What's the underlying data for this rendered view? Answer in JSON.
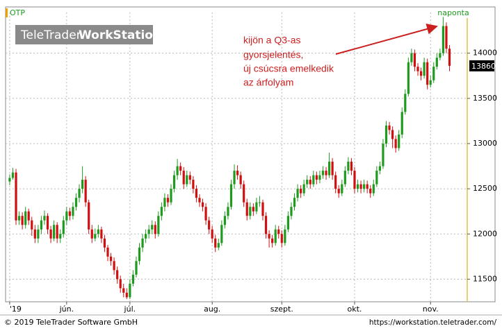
{
  "chart_data": {
    "type": "candlestick",
    "period_label": "naponta",
    "annotation": [
      "kijön a Q3-as",
      "gyorsjelentés,",
      "új csúcsra emelkedik",
      "az árfolyam"
    ],
    "series": [
      {
        "name": "OTP",
        "color": "#f0a000",
        "up_color": "#1f9a1f",
        "down_color": "#d01010",
        "candles": [
          [
            12580,
            12660,
            12540,
            12620
          ],
          [
            12620,
            12730,
            12600,
            12680
          ],
          [
            12680,
            12720,
            12100,
            12150
          ],
          [
            12150,
            12250,
            12100,
            12200
          ],
          [
            12200,
            12240,
            12050,
            12100
          ],
          [
            12100,
            12300,
            12060,
            12250
          ],
          [
            12250,
            12280,
            12100,
            12150
          ],
          [
            12150,
            12190,
            11980,
            12050
          ],
          [
            12050,
            12100,
            11900,
            11950
          ],
          [
            11950,
            12100,
            11900,
            12050
          ],
          [
            12050,
            12200,
            12000,
            12150
          ],
          [
            12150,
            12260,
            12100,
            12200
          ],
          [
            12200,
            12230,
            12000,
            12050
          ],
          [
            12050,
            12090,
            11900,
            11950
          ],
          [
            11950,
            12150,
            11920,
            12100
          ],
          [
            12100,
            12130,
            11900,
            11950
          ],
          [
            11950,
            12050,
            11900,
            12000
          ],
          [
            12000,
            12200,
            11960,
            12150
          ],
          [
            12150,
            12300,
            12100,
            12250
          ],
          [
            12250,
            12290,
            12150,
            12200
          ],
          [
            12200,
            12350,
            12160,
            12300
          ],
          [
            12300,
            12450,
            12260,
            12400
          ],
          [
            12400,
            12550,
            12350,
            12500
          ],
          [
            12500,
            12750,
            12450,
            12600
          ],
          [
            12600,
            12640,
            12300,
            12350
          ],
          [
            12350,
            12380,
            12000,
            12050
          ],
          [
            12050,
            12100,
            11900,
            11950
          ],
          [
            11950,
            12060,
            11920,
            12000
          ],
          [
            12000,
            12100,
            11960,
            12050
          ],
          [
            12050,
            12080,
            11900,
            11950
          ],
          [
            11950,
            11990,
            11800,
            11850
          ],
          [
            11850,
            11880,
            11700,
            11750
          ],
          [
            11750,
            11790,
            11650,
            11700
          ],
          [
            11700,
            11740,
            11550,
            11600
          ],
          [
            11600,
            11640,
            11450,
            11500
          ],
          [
            11500,
            11540,
            11350,
            11400
          ],
          [
            11400,
            11450,
            11300,
            11350
          ],
          [
            11350,
            11400,
            11280,
            11300
          ],
          [
            11300,
            11500,
            11280,
            11450
          ],
          [
            11450,
            11600,
            11420,
            11550
          ],
          [
            11550,
            11750,
            11520,
            11700
          ],
          [
            11700,
            11900,
            11660,
            11850
          ],
          [
            11850,
            12000,
            11800,
            11950
          ],
          [
            11950,
            12050,
            11900,
            12000
          ],
          [
            12000,
            12100,
            11950,
            12050
          ],
          [
            12050,
            12150,
            12000,
            12100
          ],
          [
            12100,
            12140,
            11950,
            12000
          ],
          [
            12000,
            12250,
            11970,
            12200
          ],
          [
            12200,
            12350,
            12150,
            12300
          ],
          [
            12300,
            12450,
            12250,
            12400
          ],
          [
            12400,
            12440,
            12300,
            12350
          ],
          [
            12350,
            12550,
            12320,
            12500
          ],
          [
            12500,
            12700,
            12460,
            12650
          ],
          [
            12650,
            12830,
            12600,
            12750
          ],
          [
            12750,
            12790,
            12650,
            12700
          ],
          [
            12700,
            12740,
            12500,
            12550
          ],
          [
            12550,
            12700,
            12520,
            12650
          ],
          [
            12650,
            12690,
            12550,
            12600
          ],
          [
            12600,
            12640,
            12450,
            12500
          ],
          [
            12500,
            12540,
            12350,
            12400
          ],
          [
            12400,
            12440,
            12300,
            12350
          ],
          [
            12350,
            12390,
            12250,
            12300
          ],
          [
            12300,
            12340,
            12100,
            12150
          ],
          [
            12150,
            12190,
            12000,
            12050
          ],
          [
            12050,
            12090,
            11900,
            11950
          ],
          [
            11950,
            11990,
            11800,
            11850
          ],
          [
            11850,
            11950,
            11820,
            11900
          ],
          [
            11900,
            12150,
            11870,
            12100
          ],
          [
            12100,
            12250,
            12060,
            12200
          ],
          [
            12200,
            12350,
            12160,
            12300
          ],
          [
            12300,
            12600,
            12270,
            12550
          ],
          [
            12550,
            12770,
            12500,
            12700
          ],
          [
            12700,
            12760,
            12600,
            12650
          ],
          [
            12650,
            12690,
            12500,
            12550
          ],
          [
            12550,
            12590,
            12300,
            12350
          ],
          [
            12350,
            12390,
            12150,
            12200
          ],
          [
            12200,
            12350,
            12160,
            12300
          ],
          [
            12300,
            12340,
            12200,
            12250
          ],
          [
            12250,
            12400,
            12220,
            12350
          ],
          [
            12350,
            12420,
            12300,
            12350
          ],
          [
            12350,
            12380,
            12150,
            12200
          ],
          [
            12200,
            12240,
            11950,
            12000
          ],
          [
            12000,
            12040,
            11850,
            11950
          ],
          [
            11950,
            11990,
            11850,
            11900
          ],
          [
            11900,
            12100,
            11870,
            12050
          ],
          [
            12050,
            12090,
            11950,
            12000
          ],
          [
            12000,
            12040,
            11850,
            11900
          ],
          [
            11900,
            12100,
            11870,
            12050
          ],
          [
            12050,
            12250,
            12020,
            12200
          ],
          [
            12200,
            12350,
            12160,
            12300
          ],
          [
            12300,
            12450,
            12260,
            12400
          ],
          [
            12400,
            12550,
            12360,
            12500
          ],
          [
            12500,
            12540,
            12400,
            12450
          ],
          [
            12450,
            12600,
            12420,
            12550
          ],
          [
            12550,
            12650,
            12510,
            12600
          ],
          [
            12600,
            12640,
            12500,
            12550
          ],
          [
            12550,
            12700,
            12520,
            12650
          ],
          [
            12650,
            12690,
            12550,
            12600
          ],
          [
            12600,
            12700,
            12560,
            12650
          ],
          [
            12650,
            12750,
            12610,
            12700
          ],
          [
            12700,
            12740,
            12600,
            12650
          ],
          [
            12650,
            12900,
            12620,
            12800
          ],
          [
            12800,
            12840,
            12600,
            12650
          ],
          [
            12650,
            12690,
            12450,
            12500
          ],
          [
            12500,
            12540,
            12400,
            12450
          ],
          [
            12450,
            12600,
            12420,
            12550
          ],
          [
            12550,
            12750,
            12520,
            12700
          ],
          [
            12700,
            12850,
            12660,
            12800
          ],
          [
            12800,
            12840,
            12650,
            12700
          ],
          [
            12700,
            12740,
            12450,
            12500
          ],
          [
            12500,
            12600,
            12460,
            12550
          ],
          [
            12550,
            12590,
            12450,
            12500
          ],
          [
            12500,
            12600,
            12460,
            12550
          ],
          [
            12550,
            12590,
            12450,
            12500
          ],
          [
            12500,
            12540,
            12400,
            12450
          ],
          [
            12450,
            12600,
            12420,
            12550
          ],
          [
            12550,
            12750,
            12520,
            12700
          ],
          [
            12700,
            12800,
            12660,
            12750
          ],
          [
            12750,
            13050,
            12720,
            13000
          ],
          [
            13000,
            13250,
            12960,
            13200
          ],
          [
            13200,
            13240,
            13100,
            13150
          ],
          [
            13150,
            13190,
            12950,
            13050
          ],
          [
            13050,
            13090,
            12900,
            12950
          ],
          [
            12950,
            13150,
            12920,
            13100
          ],
          [
            13100,
            13400,
            13060,
            13350
          ],
          [
            13350,
            13600,
            13320,
            13550
          ],
          [
            13550,
            13950,
            13520,
            13900
          ],
          [
            13900,
            14050,
            13860,
            14000
          ],
          [
            14000,
            14040,
            13800,
            13850
          ],
          [
            13850,
            13890,
            13750,
            13800
          ],
          [
            13800,
            13840,
            13700,
            13750
          ],
          [
            13750,
            13950,
            13720,
            13900
          ],
          [
            13900,
            13940,
            13600,
            13650
          ],
          [
            13650,
            13750,
            13620,
            13700
          ],
          [
            13700,
            13900,
            13670,
            13850
          ],
          [
            13850,
            14000,
            13820,
            13950
          ],
          [
            13950,
            14050,
            13920,
            14000
          ],
          [
            14000,
            14400,
            13970,
            14300
          ],
          [
            14300,
            14340,
            14000,
            14050
          ],
          [
            14050,
            14090,
            13800,
            13860
          ]
        ]
      }
    ],
    "xlim": [
      -1.3,
      144.6
    ],
    "xticks": [
      {
        "value": 0,
        "label": "'19"
      },
      {
        "value": 18,
        "label": "jún."
      },
      {
        "value": 38,
        "label": "júl."
      },
      {
        "value": 64,
        "label": "aug."
      },
      {
        "value": 86,
        "label": "szept."
      },
      {
        "value": 109,
        "label": "okt."
      },
      {
        "value": 133,
        "label": "nov."
      }
    ],
    "ylim": [
      11250,
      14450
    ],
    "yticks": [
      11500,
      12000,
      12500,
      13000,
      13500,
      14000
    ],
    "grid": true
  },
  "watermark": {
    "brand": "TeleTrader",
    "product": "WorkStation"
  },
  "footer": {
    "copyright": "© 2019 TeleTrader Software GmbH",
    "url": "https://workstation.teletrader.com/"
  }
}
